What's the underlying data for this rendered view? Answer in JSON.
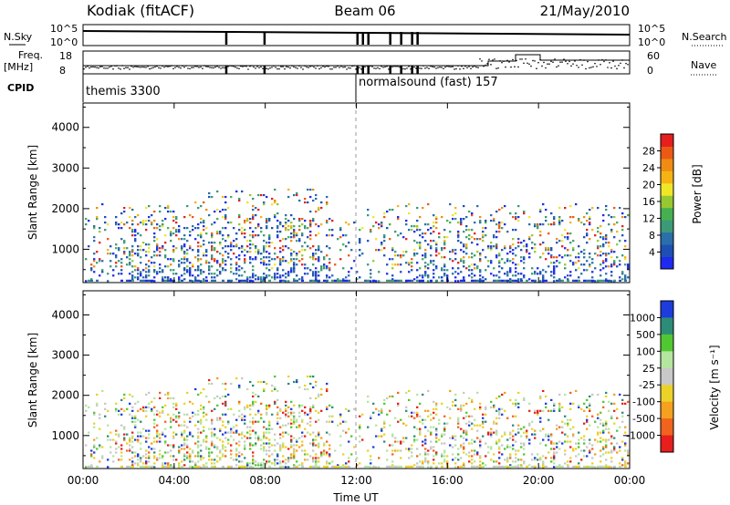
{
  "header": {
    "station": "Kodiak (fitACF)",
    "beam": "Beam 06",
    "date": "21/May/2010"
  },
  "top_panels": {
    "nsky_label": "N.Sky",
    "nsearch_label": "N.Search",
    "nsky_ticks": [
      "10^5",
      "10^0"
    ],
    "nsearch_ticks": [
      "10^5",
      "10^0"
    ],
    "freq_label_1": "Freq.",
    "freq_label_2": "[MHz]",
    "freq_ticks": [
      "18",
      "8"
    ],
    "nave_label": "Nave",
    "nave_ticks": [
      "60",
      "0"
    ],
    "cpid_label": "CPID",
    "cpid_1": "themis 3300",
    "cpid_2": "normalsound (fast) 157"
  },
  "colors": {
    "power_scale": [
      "#1e2aee",
      "#1e50b4",
      "#2a6eaa",
      "#3c9a78",
      "#46b050",
      "#96c832",
      "#f0e628",
      "#f5b414",
      "#f08c14",
      "#eb5a14",
      "#e61e1e"
    ],
    "velocity_scale": [
      "#e61e1e",
      "#f0641e",
      "#f5a01e",
      "#ebd228",
      "#c8c8c8",
      "#b4e6a0",
      "#50c832",
      "#2d8c78",
      "#1e3cdc"
    ]
  },
  "chart_data": [
    {
      "type": "heatmap",
      "title": "",
      "xlabel": "Time UT",
      "ylabel": "Slant Range [km]",
      "x_ticks": [
        "00:00",
        "04:00",
        "08:00",
        "12:00",
        "16:00",
        "20:00",
        "00:00"
      ],
      "y_ticks": [
        1000,
        2000,
        3000,
        4000
      ],
      "ylim": [
        180,
        4600
      ],
      "colorbar_label": "Power [dB]",
      "colorbar_ticks": [
        4,
        8,
        12,
        16,
        20,
        24,
        28
      ],
      "vertical_marker_time": "12:00",
      "scatter_ranges_km": [
        [
          200,
          2500
        ]
      ]
    },
    {
      "type": "heatmap",
      "title": "",
      "xlabel": "Time UT",
      "ylabel": "Slant Range [km]",
      "x_ticks": [
        "00:00",
        "04:00",
        "08:00",
        "12:00",
        "16:00",
        "20:00",
        "00:00"
      ],
      "y_ticks": [
        1000,
        2000,
        3000,
        4000
      ],
      "ylim": [
        180,
        4600
      ],
      "colorbar_label": "Velocity [m s⁻¹]",
      "colorbar_ticks": [
        1000,
        500,
        100,
        25,
        -25,
        -100,
        -500,
        -1000
      ],
      "vertical_marker_time": "12:00",
      "scatter_ranges_km": [
        [
          200,
          2500
        ]
      ]
    }
  ]
}
